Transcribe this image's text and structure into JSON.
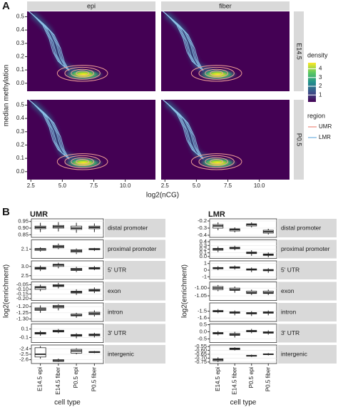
{
  "panel_labels": [
    "A",
    "B"
  ],
  "chart_data": [
    {
      "type": "density",
      "columns": [
        "epi",
        "fiber"
      ],
      "rows": [
        "E14.5",
        "P0.5"
      ],
      "xlabel": "log2(nCG)",
      "ylabel": "median methylation",
      "xlim": [
        2.2,
        12.4
      ],
      "xticks": [
        2.5,
        {
          "value": 5,
          "label": "5.0"
        },
        7.5,
        {
          "value": 10,
          "label": "10.0"
        }
      ],
      "ylim": [
        -0.06,
        0.54
      ],
      "yticks": [
        {
          "value": 0,
          "label": "0.0"
        },
        0.1,
        0.2,
        0.3,
        0.4,
        0.5
      ],
      "density_title": "density",
      "density_lim": [
        0.2,
        4.7
      ],
      "density_ticks": [
        1,
        2,
        3,
        4
      ],
      "legend_title": "region",
      "series": [
        {
          "name": "UMR",
          "color": "#f0a097"
        },
        {
          "name": "LMR",
          "color": "#8cc0e6"
        }
      ]
    },
    {
      "type": "box",
      "title": "UMR",
      "xlabel": "cell type",
      "ylabel": "log2(enrichment)",
      "categories": [
        "E14.5 epi",
        "E14.5 fiber",
        "P0.5 epi",
        "P0.5 fiber"
      ],
      "facets": [
        {
          "name": "distal promoter",
          "ylim": [
            0.83,
            0.97
          ],
          "yticks": [
            0.85,
            {
              "value": 0.9,
              "label": "0.90"
            },
            0.95
          ],
          "boxes": [
            [
              0.87,
              0.895,
              0.905,
              0.915,
              0.94
            ],
            [
              0.875,
              0.9,
              0.91,
              0.92,
              0.945
            ],
            [
              0.865,
              0.89,
              0.9,
              0.915,
              0.94
            ],
            [
              0.87,
              0.895,
              0.905,
              0.915,
              0.935
            ]
          ]
        },
        {
          "name": "proximal promoter",
          "ylim": [
            1.95,
            2.25
          ],
          "yticks": [
            2.1
          ],
          "boxes": [
            [
              2.06,
              2.08,
              2.1,
              2.11,
              2.13
            ],
            [
              2.1,
              2.12,
              2.14,
              2.16,
              2.19
            ],
            [
              2.02,
              2.05,
              2.07,
              2.09,
              2.11
            ],
            [
              2.07,
              2.09,
              2.1,
              2.11,
              2.12
            ]
          ]
        },
        {
          "name": "5' UTR",
          "ylim": [
            2.3,
            3.3
          ],
          "yticks": [
            2.5,
            {
              "value": 3,
              "label": "3.0"
            }
          ],
          "boxes": [
            [
              2.75,
              2.85,
              2.9,
              2.95,
              3.05
            ],
            [
              2.9,
              3.0,
              3.08,
              3.12,
              3.2
            ],
            [
              2.7,
              2.78,
              2.84,
              2.9,
              2.98
            ],
            [
              2.8,
              2.86,
              2.9,
              2.94,
              3.02
            ]
          ]
        },
        {
          "name": "exon",
          "ylim": [
            -0.22,
            -0.02
          ],
          "yticks": [
            {
              "value": -0.2,
              "label": "-0.20"
            },
            -0.15,
            {
              "value": -0.1,
              "label": "-0.10"
            },
            -0.05
          ],
          "boxes": [
            [
              -0.12,
              -0.1,
              -0.08,
              -0.07,
              -0.05
            ],
            [
              -0.09,
              -0.07,
              -0.06,
              -0.05,
              -0.03
            ],
            [
              -0.16,
              -0.14,
              -0.13,
              -0.12,
              -0.1
            ],
            [
              -0.14,
              -0.12,
              -0.11,
              -0.1,
              -0.08
            ]
          ]
        },
        {
          "name": "intron",
          "ylim": [
            -1.32,
            -1.17
          ],
          "yticks": [
            {
              "value": -1.3,
              "label": "-1.30"
            },
            -1.25,
            {
              "value": -1.2,
              "label": "-1.20"
            }
          ],
          "boxes": [
            [
              -1.25,
              -1.23,
              -1.22,
              -1.21,
              -1.19
            ],
            [
              -1.23,
              -1.21,
              -1.2,
              -1.19,
              -1.18
            ],
            [
              -1.29,
              -1.275,
              -1.27,
              -1.26,
              -1.25
            ],
            [
              -1.28,
              -1.265,
              -1.255,
              -1.245,
              -1.23
            ]
          ]
        },
        {
          "name": "3' UTR",
          "ylim": [
            -0.22,
            0.22
          ],
          "yticks": [
            -0.1,
            0.1
          ],
          "boxes": [
            [
              -0.06,
              -0.02,
              0.0,
              0.02,
              0.06
            ],
            [
              0.0,
              0.03,
              0.05,
              0.07,
              0.1
            ],
            [
              -0.12,
              -0.07,
              -0.05,
              -0.03,
              0.0
            ],
            [
              -0.1,
              -0.06,
              -0.04,
              -0.02,
              0.01
            ]
          ]
        },
        {
          "name": "intergenic",
          "ylim": [
            -2.67,
            -2.33
          ],
          "yticks": [
            -2.6,
            -2.5,
            -2.4
          ],
          "boxes": [
            [
              -2.58,
              -2.55,
              -2.5,
              -2.38,
              -2.35
            ],
            [
              -2.64,
              -2.63,
              -2.62,
              -2.6,
              -2.58
            ],
            [
              -2.5,
              -2.48,
              -2.44,
              -2.41,
              -2.39
            ],
            [
              -2.48,
              -2.47,
              -2.46,
              -2.45,
              -2.44
            ]
          ]
        }
      ]
    },
    {
      "type": "box",
      "title": "LMR",
      "xlabel": "cell type",
      "ylabel": "log2(enrichment)",
      "categories": [
        "E14.5 epi",
        "E14.5 fiber",
        "P0.5 epi",
        "P0.5 fiber"
      ],
      "facets": [
        {
          "name": "distal promoter",
          "ylim": [
            -0.43,
            -0.17
          ],
          "yticks": [
            -0.4,
            -0.3,
            -0.2
          ],
          "boxes": [
            [
              -0.33,
              -0.3,
              -0.27,
              -0.25,
              -0.22
            ],
            [
              -0.36,
              -0.34,
              -0.32,
              -0.31,
              -0.29
            ],
            [
              -0.29,
              -0.27,
              -0.25,
              -0.24,
              -0.22
            ],
            [
              -0.39,
              -0.37,
              -0.35,
              -0.33,
              -0.31
            ]
          ]
        },
        {
          "name": "proximal promoter",
          "ylim": [
            -0.05,
            0.45
          ],
          "yticks": [
            {
              "value": 0,
              "label": "0.0"
            },
            0.1,
            0.2,
            0.3,
            0.4
          ],
          "boxes": [
            [
              0.12,
              0.17,
              0.2,
              0.22,
              0.27
            ],
            [
              0.17,
              0.21,
              0.23,
              0.25,
              0.29
            ],
            [
              0.02,
              0.08,
              0.1,
              0.12,
              0.17
            ],
            [
              -0.02,
              0.03,
              0.05,
              0.07,
              0.11
            ]
          ]
        },
        {
          "name": "5' UTR",
          "ylim": [
            -1.4,
            1.4
          ],
          "yticks": [
            -1,
            0,
            1
          ],
          "boxes": [
            [
              0.0,
              0.2,
              0.3,
              0.4,
              0.6
            ],
            [
              0.1,
              0.3,
              0.4,
              0.5,
              0.7
            ],
            [
              -0.3,
              0.0,
              0.1,
              0.2,
              0.4
            ],
            [
              -0.4,
              -0.1,
              0.0,
              0.1,
              0.3
            ]
          ]
        },
        {
          "name": "exon",
          "ylim": [
            -1.08,
            -0.96
          ],
          "yticks": [
            -1.05,
            {
              "value": -1,
              "label": "-1.00"
            }
          ],
          "boxes": [
            [
              -1.02,
              -1.01,
              -1.0,
              -0.99,
              -0.98
            ],
            [
              -1.03,
              -1.015,
              -1.01,
              -1.0,
              -0.99
            ],
            [
              -1.045,
              -1.035,
              -1.03,
              -1.02,
              -1.01
            ],
            [
              -1.045,
              -1.035,
              -1.03,
              -1.02,
              -1.01
            ]
          ]
        },
        {
          "name": "intron",
          "ylim": [
            -1.65,
            -1.38
          ],
          "yticks": [
            -1.6,
            -1.5
          ],
          "boxes": [
            [
              -1.53,
              -1.51,
              -1.5,
              -1.49,
              -1.47
            ],
            [
              -1.56,
              -1.53,
              -1.52,
              -1.51,
              -1.49
            ],
            [
              -1.57,
              -1.54,
              -1.53,
              -1.52,
              -1.5
            ],
            [
              -1.56,
              -1.53,
              -1.52,
              -1.51,
              -1.49
            ]
          ]
        },
        {
          "name": "3' UTR",
          "ylim": [
            -0.75,
            0.55
          ],
          "yticks": [
            -0.5,
            {
              "value": 0,
              "label": "0.0"
            },
            0.5
          ],
          "boxes": [
            [
              -0.25,
              -0.15,
              -0.1,
              -0.05,
              0.05
            ],
            [
              -0.4,
              -0.25,
              -0.2,
              -0.12,
              0.0
            ],
            [
              -0.1,
              0.0,
              0.05,
              0.1,
              0.2
            ],
            [
              -0.2,
              -0.1,
              -0.05,
              0.0,
              0.1
            ]
          ]
        },
        {
          "name": "intergenic",
          "ylim": [
            -0.77,
            -0.53
          ],
          "yticks": [
            -0.75,
            {
              "value": -0.7,
              "label": "-0.70"
            },
            -0.65,
            {
              "value": -0.6,
              "label": "-0.60"
            },
            -0.55
          ],
          "boxes": [
            [
              -0.75,
              -0.735,
              -0.72,
              -0.71,
              -0.69
            ],
            [
              -0.6,
              -0.59,
              -0.58,
              -0.57,
              -0.56
            ],
            [
              -0.685,
              -0.675,
              -0.67,
              -0.665,
              -0.655
            ],
            [
              -0.665,
              -0.655,
              -0.65,
              -0.645,
              -0.635
            ]
          ]
        }
      ]
    }
  ]
}
